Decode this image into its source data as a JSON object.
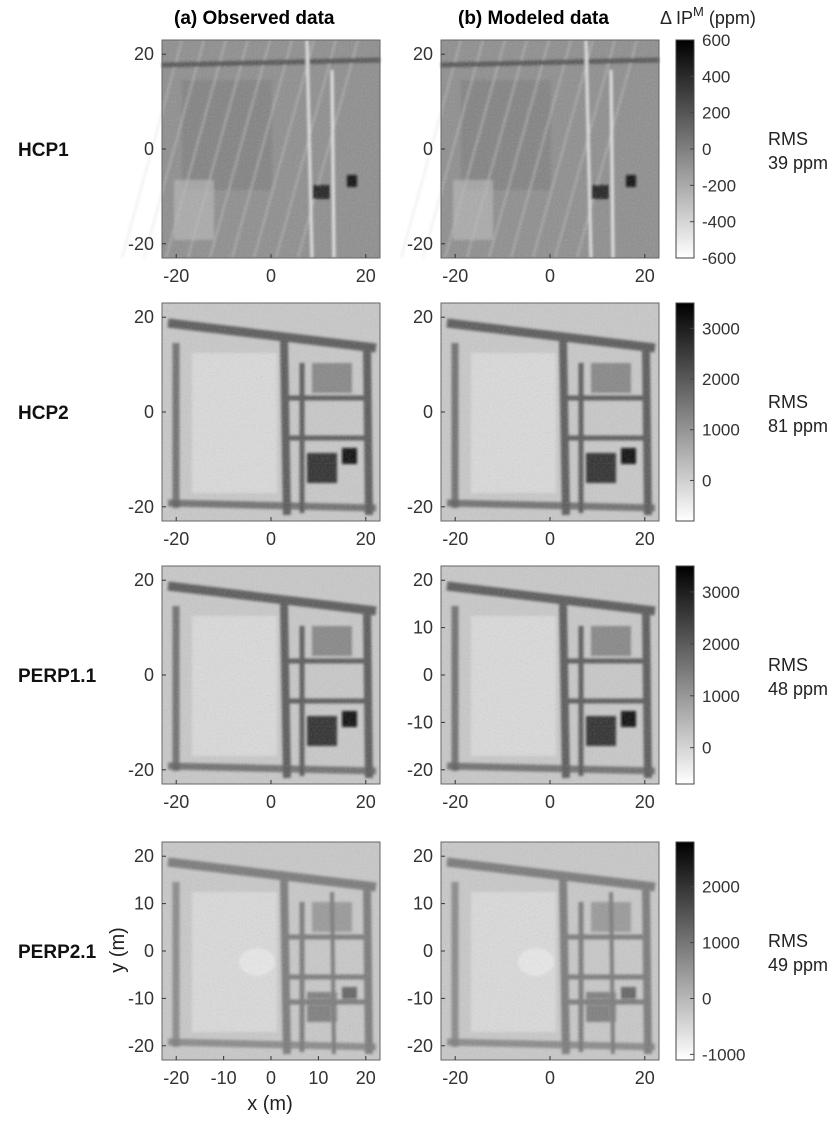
{
  "headers": {
    "observed": "(a)  Observed data",
    "modeled": "(b)  Modeled data",
    "colorbar_prefix": "Δ IP",
    "colorbar_sup": "M",
    "colorbar_unit": " (ppm)"
  },
  "axis": {
    "xlabel": "x (m)",
    "ylabel": "y (m)",
    "range": [
      -23,
      23
    ]
  },
  "rows": [
    {
      "label": "HCP1",
      "rms": [
        "RMS",
        "39 ppm"
      ],
      "cbar_range": [
        -600,
        600
      ],
      "cbar_ticks": [
        "600",
        "400",
        "200",
        "0",
        "-200",
        "-400",
        "-600"
      ],
      "cbar_tick_values": [
        600,
        400,
        200,
        0,
        -200,
        -400,
        -600
      ],
      "y_ticks_a": [
        "20",
        "0",
        "-20"
      ],
      "y_ticks_b": [
        "20",
        "0",
        "-20"
      ],
      "x_ticks_a": [
        "-20",
        "0",
        "20"
      ],
      "x_ticks_b": [
        "-20",
        "0",
        "20"
      ]
    },
    {
      "label": "HCP2",
      "rms": [
        "RMS",
        "81 ppm"
      ],
      "cbar_range": [
        -800,
        3500
      ],
      "cbar_ticks": [
        "3000",
        "2000",
        "1000",
        "0"
      ],
      "cbar_tick_values": [
        3000,
        2000,
        1000,
        0
      ],
      "y_ticks_a": [
        "20",
        "0",
        "-20"
      ],
      "y_ticks_b": [
        "20",
        "0",
        "-20"
      ],
      "x_ticks_a": [
        "-20",
        "0",
        "20"
      ],
      "x_ticks_b": [
        "-20",
        "0",
        "20"
      ]
    },
    {
      "label": "PERP1.1",
      "rms": [
        "RMS",
        "48 ppm"
      ],
      "cbar_range": [
        -700,
        3500
      ],
      "cbar_ticks": [
        "3000",
        "2000",
        "1000",
        "0"
      ],
      "cbar_tick_values": [
        3000,
        2000,
        1000,
        0
      ],
      "y_ticks_a": [
        "20",
        "0",
        "-20"
      ],
      "y_ticks_b": [
        "20",
        "10",
        "0",
        "-10",
        "-20"
      ],
      "x_ticks_a": [
        "-20",
        "0",
        "20"
      ],
      "x_ticks_b": [
        "-20",
        "0",
        "20"
      ]
    },
    {
      "label": "PERP2.1",
      "rms": [
        "RMS",
        "49 ppm"
      ],
      "cbar_range": [
        -1100,
        2800
      ],
      "cbar_ticks": [
        "2000",
        "1000",
        "0",
        "-1000"
      ],
      "cbar_tick_values": [
        2000,
        1000,
        0,
        -1000
      ],
      "y_ticks_a": [
        "20",
        "10",
        "0",
        "-10",
        "-20"
      ],
      "y_ticks_b": [
        "20",
        "10",
        "0",
        "-10",
        "-20"
      ],
      "x_ticks_a": [
        "-20",
        "-10",
        "0",
        "10",
        "20"
      ],
      "x_ticks_b": [
        "-20",
        "0",
        "20"
      ]
    }
  ],
  "colors": {
    "colormap_low": "#ffffff",
    "colormap_high": "#000000",
    "map_background": "#c9c9c9",
    "feature_dark": "#3a3a3a",
    "feature_light": "#efefef"
  }
}
